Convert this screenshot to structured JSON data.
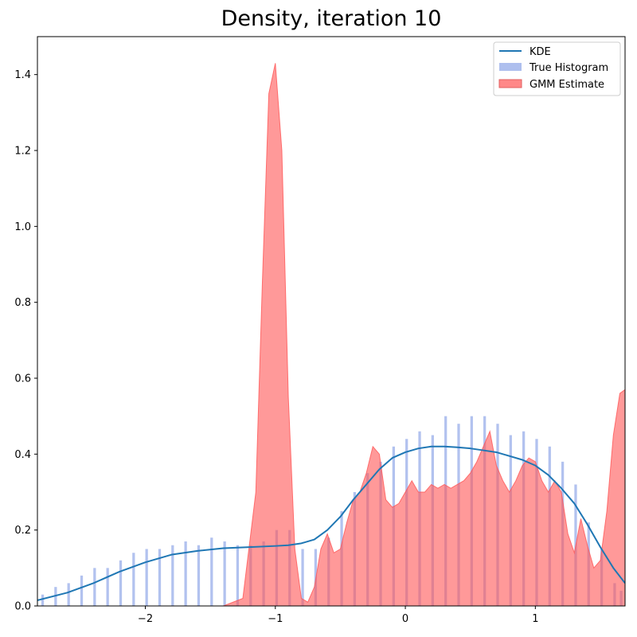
{
  "chart_data": {
    "type": "area",
    "title": "Density, iteration 10",
    "xlabel": "",
    "ylabel": "",
    "xlim": [
      -2.83,
      1.69
    ],
    "ylim": [
      0,
      1.5
    ],
    "xticks": [
      -2,
      -1,
      0,
      1
    ],
    "xtick_labels": [
      "−2",
      "−1",
      "0",
      "1"
    ],
    "yticks": [
      0.0,
      0.2,
      0.4,
      0.6,
      0.8,
      1.0,
      1.2,
      1.4
    ],
    "ytick_labels": [
      "0.0",
      "0.2",
      "0.4",
      "0.6",
      "0.8",
      "1.0",
      "1.2",
      "1.4"
    ],
    "grid": false,
    "legend_position": "top-right",
    "series": [
      {
        "name": "KDE",
        "kind": "line",
        "color": "#1f77b4",
        "x": [
          -2.83,
          -2.6,
          -2.4,
          -2.2,
          -2.0,
          -1.8,
          -1.6,
          -1.4,
          -1.2,
          -1.0,
          -0.9,
          -0.8,
          -0.7,
          -0.6,
          -0.5,
          -0.4,
          -0.3,
          -0.2,
          -0.1,
          0.0,
          0.1,
          0.2,
          0.3,
          0.4,
          0.5,
          0.6,
          0.7,
          0.8,
          0.9,
          1.0,
          1.1,
          1.2,
          1.3,
          1.4,
          1.5,
          1.6,
          1.69
        ],
        "y": [
          0.015,
          0.035,
          0.06,
          0.09,
          0.115,
          0.135,
          0.145,
          0.152,
          0.155,
          0.158,
          0.16,
          0.165,
          0.175,
          0.2,
          0.235,
          0.28,
          0.32,
          0.36,
          0.39,
          0.405,
          0.415,
          0.42,
          0.42,
          0.418,
          0.415,
          0.41,
          0.405,
          0.395,
          0.385,
          0.37,
          0.345,
          0.31,
          0.27,
          0.215,
          0.155,
          0.1,
          0.06
        ]
      },
      {
        "name": "True Histogram",
        "kind": "histogram",
        "color": "#aebfee",
        "bin_width": 0.02,
        "x": [
          -2.8,
          -2.7,
          -2.6,
          -2.5,
          -2.4,
          -2.3,
          -2.2,
          -2.1,
          -2.0,
          -1.9,
          -1.8,
          -1.7,
          -1.6,
          -1.5,
          -1.4,
          -1.3,
          -1.2,
          -1.1,
          -1.0,
          -0.9,
          -0.8,
          -0.7,
          -0.6,
          -0.5,
          -0.4,
          -0.3,
          -0.2,
          -0.1,
          0.0,
          0.1,
          0.2,
          0.3,
          0.4,
          0.5,
          0.6,
          0.7,
          0.8,
          0.9,
          1.0,
          1.1,
          1.2,
          1.3,
          1.4,
          1.5,
          1.6,
          1.65
        ],
        "y": [
          0.03,
          0.05,
          0.06,
          0.08,
          0.1,
          0.1,
          0.12,
          0.14,
          0.15,
          0.15,
          0.16,
          0.17,
          0.16,
          0.18,
          0.17,
          0.16,
          0.16,
          0.17,
          0.2,
          0.2,
          0.15,
          0.15,
          0.18,
          0.25,
          0.3,
          0.35,
          0.38,
          0.42,
          0.44,
          0.46,
          0.45,
          0.5,
          0.48,
          0.5,
          0.5,
          0.48,
          0.45,
          0.46,
          0.44,
          0.42,
          0.38,
          0.32,
          0.22,
          0.15,
          0.06,
          0.04
        ]
      },
      {
        "name": "GMM Estimate",
        "kind": "area",
        "color": "#ff5555",
        "x": [
          -2.83,
          -1.4,
          -1.25,
          -1.15,
          -1.1,
          -1.05,
          -1.0,
          -0.95,
          -0.9,
          -0.85,
          -0.8,
          -0.75,
          -0.7,
          -0.65,
          -0.6,
          -0.55,
          -0.5,
          -0.45,
          -0.4,
          -0.35,
          -0.3,
          -0.25,
          -0.2,
          -0.15,
          -0.1,
          -0.05,
          0.0,
          0.05,
          0.1,
          0.15,
          0.2,
          0.25,
          0.3,
          0.35,
          0.4,
          0.45,
          0.5,
          0.55,
          0.6,
          0.65,
          0.7,
          0.75,
          0.8,
          0.85,
          0.9,
          0.95,
          1.0,
          1.05,
          1.1,
          1.15,
          1.2,
          1.25,
          1.3,
          1.35,
          1.4,
          1.45,
          1.5,
          1.55,
          1.6,
          1.65,
          1.69
        ],
        "y": [
          0.0,
          0.0,
          0.02,
          0.3,
          0.85,
          1.35,
          1.43,
          1.2,
          0.55,
          0.15,
          0.02,
          0.01,
          0.05,
          0.15,
          0.19,
          0.14,
          0.15,
          0.22,
          0.28,
          0.3,
          0.35,
          0.42,
          0.4,
          0.28,
          0.26,
          0.27,
          0.3,
          0.33,
          0.3,
          0.3,
          0.32,
          0.31,
          0.32,
          0.31,
          0.32,
          0.33,
          0.35,
          0.38,
          0.42,
          0.46,
          0.37,
          0.33,
          0.3,
          0.33,
          0.37,
          0.39,
          0.38,
          0.33,
          0.3,
          0.33,
          0.3,
          0.19,
          0.14,
          0.23,
          0.16,
          0.1,
          0.12,
          0.25,
          0.45,
          0.56,
          0.57
        ]
      }
    ]
  },
  "legend": {
    "items": [
      {
        "label": "KDE",
        "color": "#1f77b4",
        "style": "line"
      },
      {
        "label": "True Histogram",
        "color": "#aebfee",
        "style": "patch"
      },
      {
        "label": "GMM Estimate",
        "color": "#ff8888",
        "style": "patch"
      }
    ]
  }
}
